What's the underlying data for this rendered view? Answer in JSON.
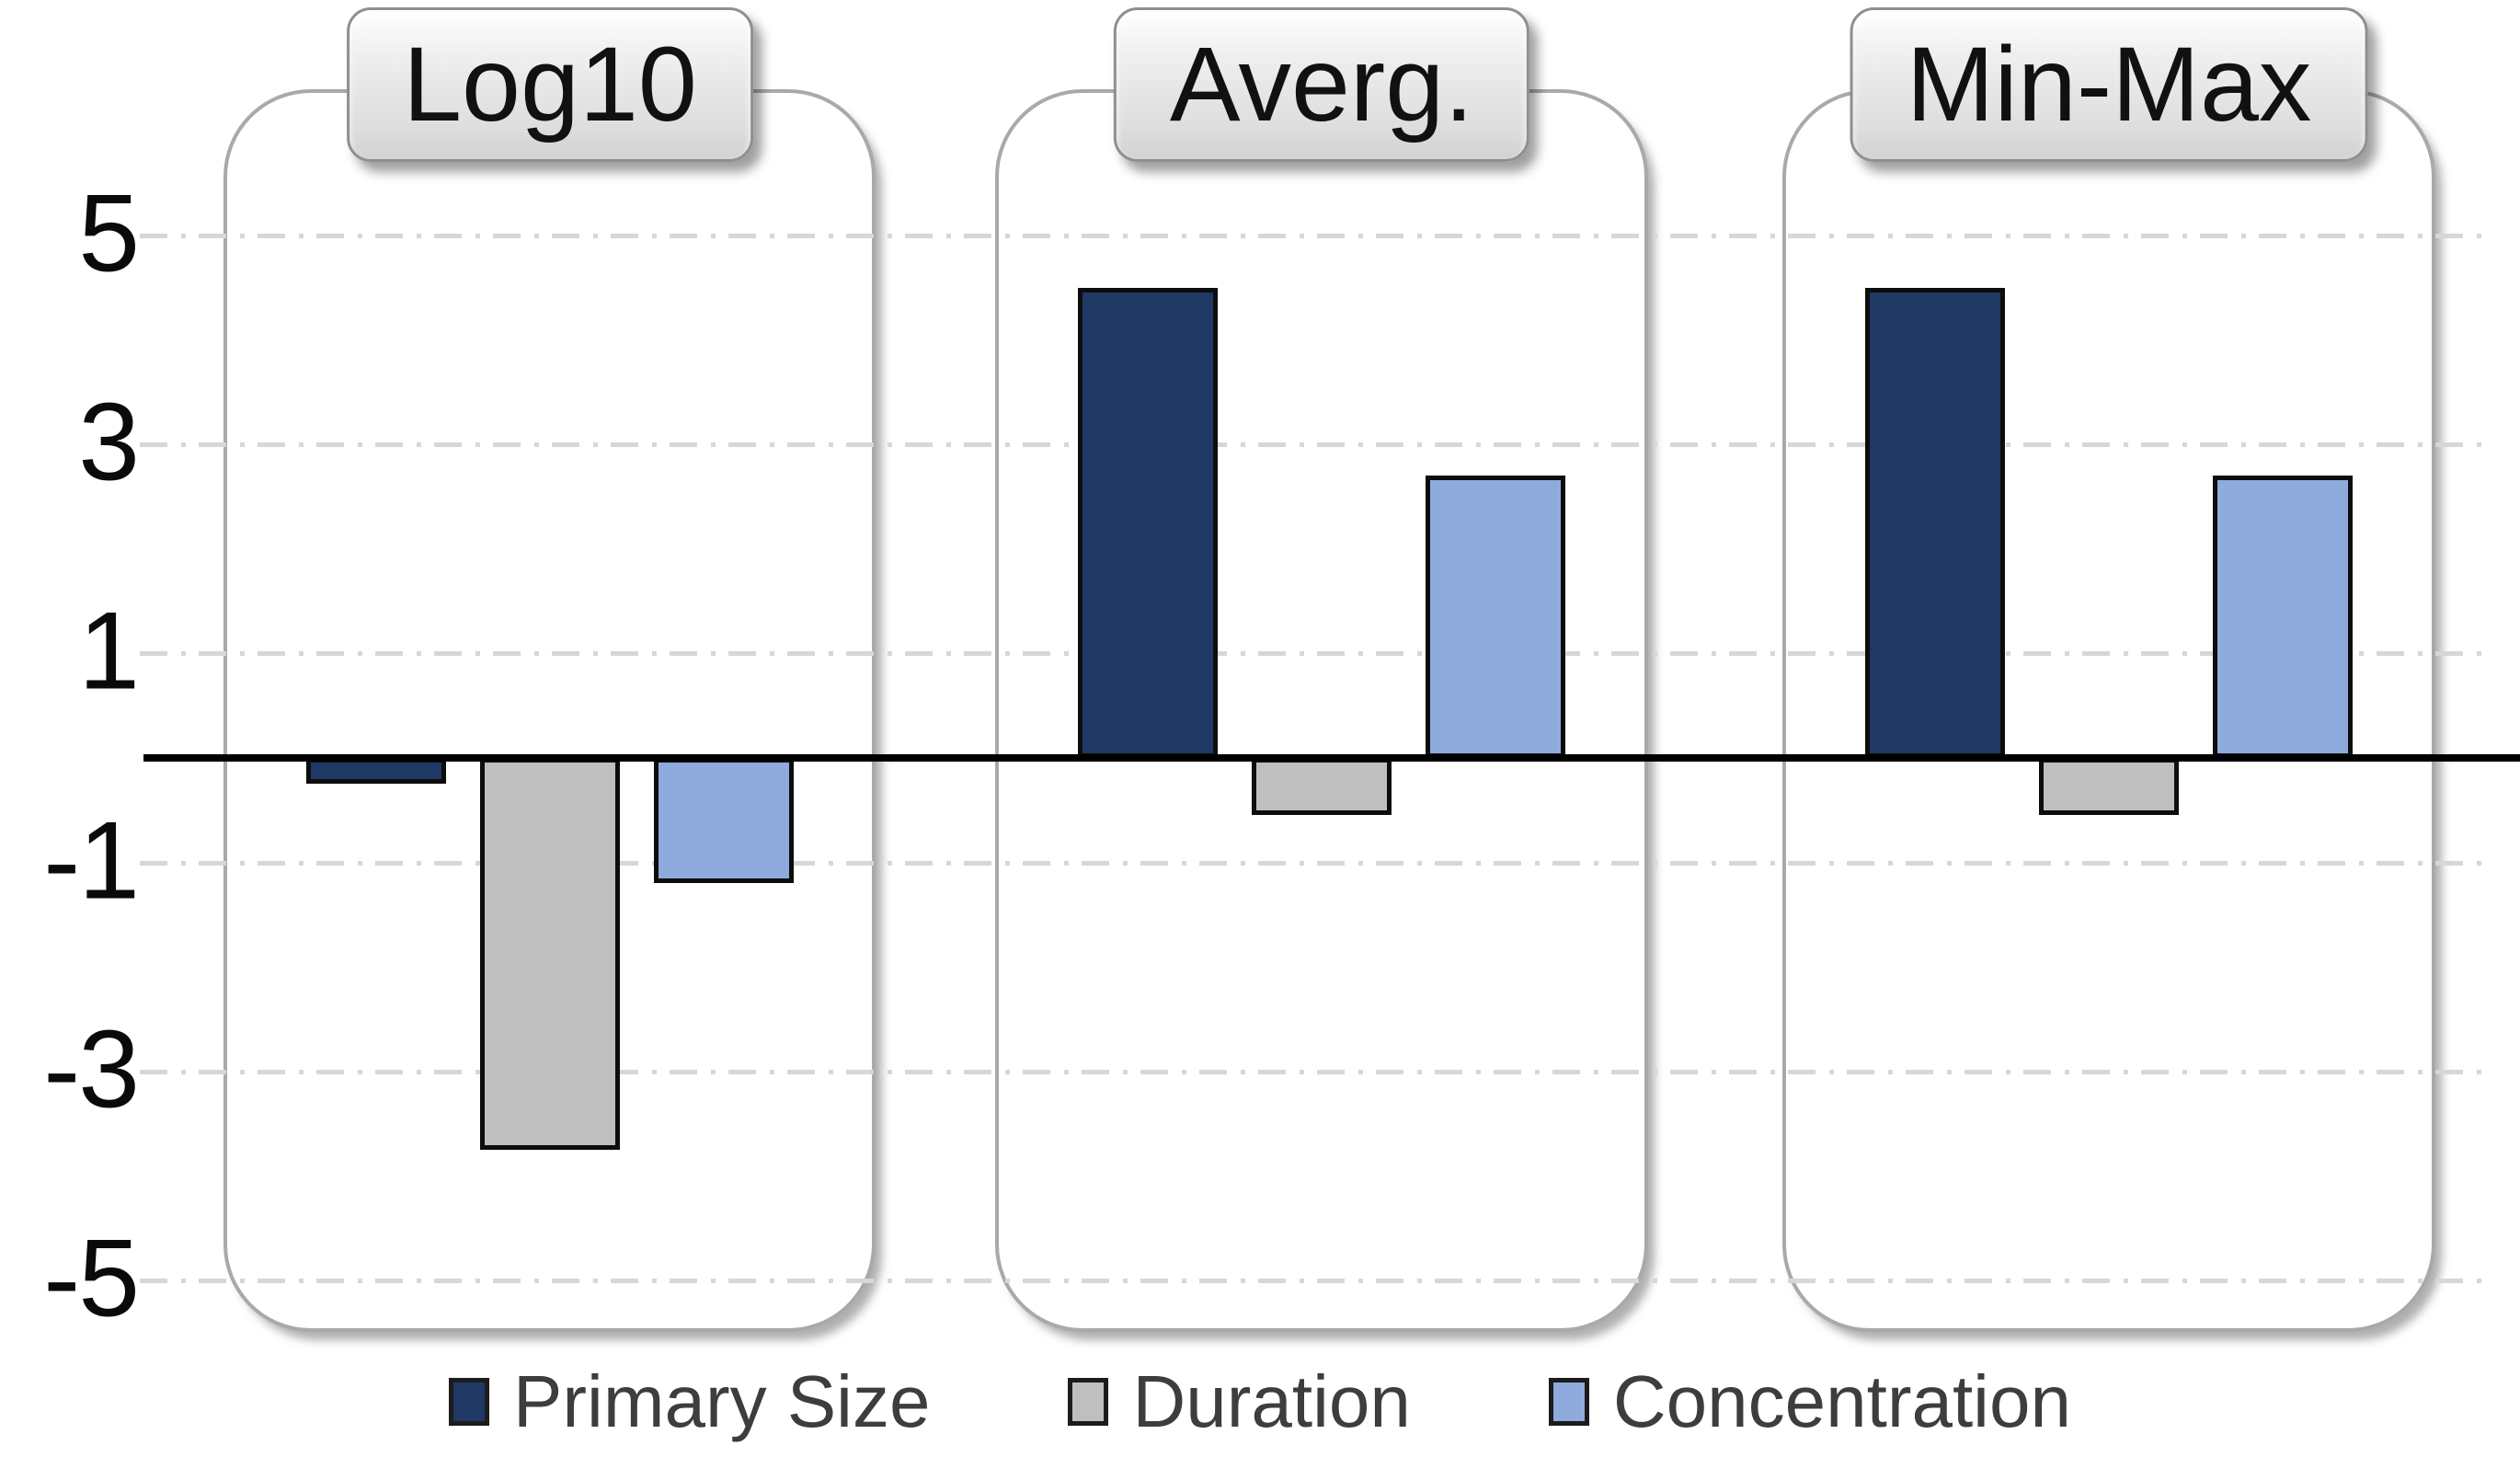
{
  "chart_data": {
    "type": "bar",
    "title": "",
    "panels": [
      {
        "label": "Log10",
        "values": [
          -0.25,
          -3.75,
          -1.2
        ]
      },
      {
        "label": "Averg.",
        "values": [
          4.5,
          -0.55,
          2.7
        ]
      },
      {
        "label": "Min-Max",
        "values": [
          4.5,
          -0.55,
          2.7
        ]
      }
    ],
    "series": [
      {
        "name": "Primary Size",
        "color": "#1F3864"
      },
      {
        "name": "Duration",
        "color": "#BFBFBF"
      },
      {
        "name": "Concentration",
        "color": "#8FAADC"
      }
    ],
    "y_ticks": [
      "5",
      "3",
      "1",
      "-1",
      "-3",
      "-5"
    ],
    "y_tick_values": [
      5,
      3,
      1,
      -1,
      -3,
      -5
    ],
    "ylim": [
      -6.6,
      6.4
    ],
    "xlabel": "",
    "ylabel": "",
    "grid": "horizontal-dashed",
    "zero_line": true,
    "legend_position": "bottom"
  },
  "colors": {
    "background": "#FFFFFF",
    "grid": "#D7D7D7",
    "zero_line": "#000000",
    "bar_border": "#0D0D0D",
    "panel_border": "#A9A9A9",
    "badge_text": "#111111",
    "tick_text": "#0A0A0A",
    "legend_text": "#3D3D3D"
  }
}
